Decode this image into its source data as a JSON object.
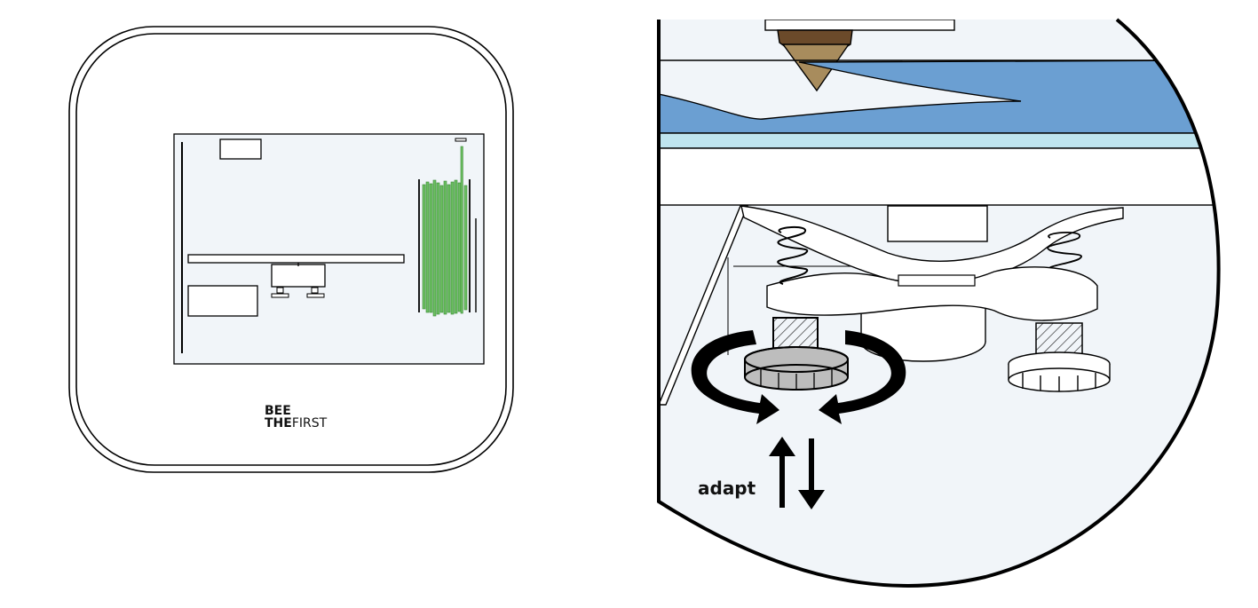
{
  "printer": {
    "brand_line1": "BEE",
    "brand_line2_bold": "THE",
    "brand_line2_light": "FIRST"
  },
  "detail": {
    "label": "adapt"
  },
  "colors": {
    "panel_fill": "#f1f5f9",
    "filament_green": "#6cbf62",
    "bed_blue": "#6b9fd2",
    "bed_glass": "#bfe4ee",
    "nozzle_brass": "#a88c5d",
    "nozzle_brown": "#6b4a2a",
    "knob_gray": "#bdbdbd",
    "outline": "#000000"
  }
}
